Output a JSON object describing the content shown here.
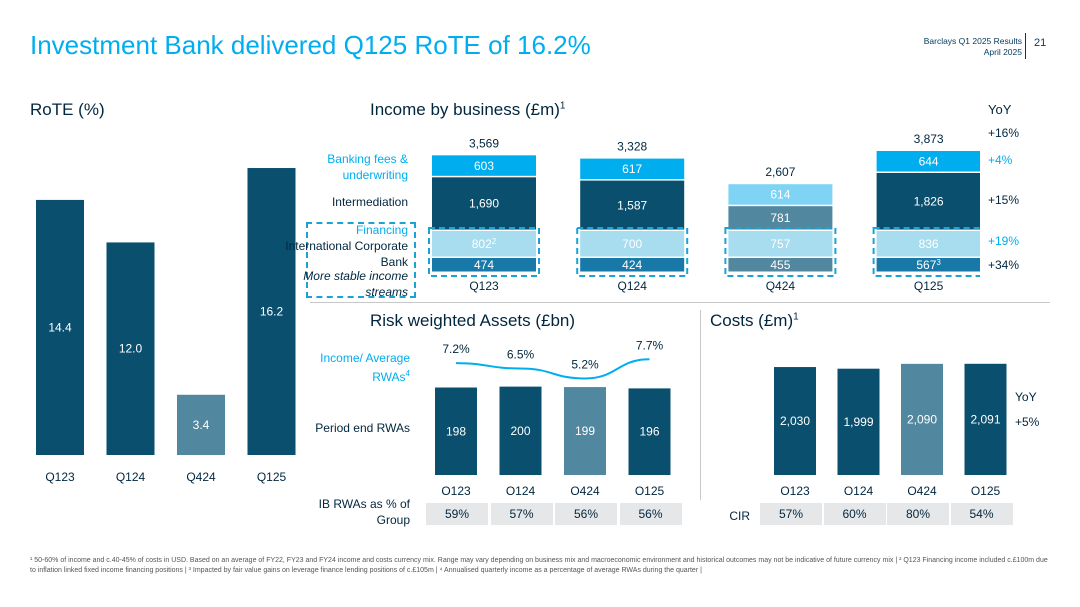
{
  "header": {
    "title": "Investment Bank delivered Q125 RoTE of 16.2%",
    "brand_line1": "Barclays Q1 2025 Results",
    "brand_line2": "April 2025",
    "page_number": "21"
  },
  "colors": {
    "dark_navy": "#0a4f6e",
    "grey_blue": "#52889f",
    "bright_blue": "#00aeef",
    "light_blue": "#7fd4f5",
    "pale_blue": "#a8dcef",
    "mid_blue": "#1878a8",
    "title_blue": "#00aeef",
    "grey_box": "#e6e7e8"
  },
  "rote": {
    "title": "RoTE (%)",
    "chart_data": {
      "type": "bar",
      "categories": [
        "Q123",
        "Q124",
        "Q424",
        "Q125"
      ],
      "values": [
        14.4,
        12.0,
        3.4,
        16.2
      ],
      "value_labels": [
        "14.4",
        "12.0",
        "3.4",
        "16.2"
      ],
      "highlight": [
        false,
        false,
        true,
        false
      ],
      "title": "RoTE (%)",
      "ylim": [
        0,
        17.5
      ]
    }
  },
  "income": {
    "title": "Income by business (£m)",
    "title_sup": "1",
    "row_labels": {
      "banking": "Banking fees & underwriting",
      "intermediation": "Intermediation",
      "financing": "Financing",
      "icb": "International Corporate Bank",
      "stable": "More stable income streams"
    },
    "yoy_header": "YoY",
    "yoy": {
      "total": "+16%",
      "banking": "+4%",
      "intermediation": "+15%",
      "financing": "+19%",
      "icb": "+34%"
    },
    "chart_data": {
      "type": "bar",
      "stacked": true,
      "categories": [
        "Q123",
        "Q124",
        "Q424",
        "Q125"
      ],
      "totals": [
        "3,569",
        "3,328",
        "2,607",
        "3,873"
      ],
      "series": [
        {
          "name": "International Corporate Bank",
          "values": [
            474,
            424,
            455,
            567
          ],
          "labels": [
            "474",
            "424",
            "455",
            "567"
          ],
          "sup": [
            "",
            "",
            "",
            "3"
          ]
        },
        {
          "name": "Financing",
          "values": [
            802,
            700,
            757,
            836
          ],
          "labels": [
            "802",
            "700",
            "757",
            "836"
          ],
          "sup": [
            "2",
            "",
            "",
            ""
          ]
        },
        {
          "name": "Intermediation",
          "values": [
            1690,
            1587,
            781,
            1826
          ],
          "labels": [
            "1,690",
            "1,587",
            "781",
            "1,826"
          ],
          "sup": [
            "",
            "",
            "",
            ""
          ]
        },
        {
          "name": "Banking fees & underwriting",
          "values": [
            603,
            617,
            614,
            644
          ],
          "labels": [
            "603",
            "617",
            "614",
            "644"
          ],
          "sup": [
            "",
            "",
            "",
            ""
          ]
        }
      ],
      "highlight": [
        false,
        false,
        true,
        false
      ],
      "ylim": [
        0,
        4200
      ]
    }
  },
  "rwa": {
    "title": "Risk weighted Assets (£bn)",
    "income_label": "Income/ Average RWAs",
    "income_label_sup": "4",
    "period_label": "Period end RWAs",
    "share_label": "IB RWAs as % of Group",
    "chart_data": {
      "type": "bar",
      "categories": [
        "Q123",
        "Q124",
        "Q424",
        "Q125"
      ],
      "values": [
        198,
        200,
        199,
        196
      ],
      "highlight": [
        false,
        false,
        true,
        false
      ],
      "line": {
        "name": "Income/ Average RWAs",
        "values": [
          7.2,
          6.5,
          5.2,
          7.7
        ],
        "labels": [
          "7.2%",
          "6.5%",
          "5.2%",
          "7.7%"
        ]
      },
      "share": [
        "59%",
        "57%",
        "56%",
        "56%"
      ],
      "ylim": [
        0,
        215
      ]
    }
  },
  "costs": {
    "title": "Costs (£m)",
    "title_sup": "1",
    "yoy_header": "YoY",
    "yoy": "+5%",
    "cir_label": "CIR",
    "chart_data": {
      "type": "bar",
      "categories": [
        "Q123",
        "Q124",
        "Q424",
        "Q125"
      ],
      "values": [
        2030,
        1999,
        2090,
        2091
      ],
      "value_labels": [
        "2,030",
        "1,999",
        "2,090",
        "2,091"
      ],
      "highlight": [
        false,
        false,
        true,
        false
      ],
      "cir": [
        "57%",
        "60%",
        "80%",
        "54%"
      ],
      "ylim": [
        0,
        2200
      ]
    }
  },
  "footer": "¹ 50-60% of income and c.40-45% of costs in USD. Based on an average of FY22, FY23 and FY24 income and costs currency mix. Range may vary depending on business mix and macroeconomic environment and historical outcomes may not be indicative of future currency mix | ² Q123 Financing income included c.£100m due to inflation linked fixed income financing positions | ³ Impacted by fair value gains on leverage finance lending positions of c.£105m | ⁴ Annualised quarterly income as a percentage of average RWAs during the quarter |"
}
